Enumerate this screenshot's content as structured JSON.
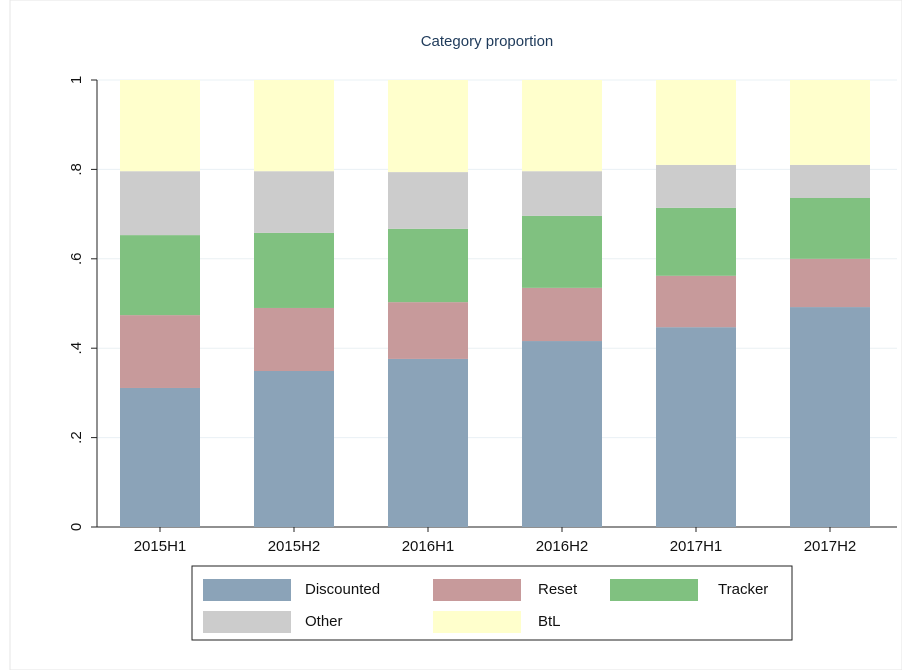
{
  "chart_data": {
    "type": "stacked_bar",
    "title": "Category proportion",
    "categories": [
      "2015H1",
      "2015H2",
      "2016H1",
      "2016H2",
      "2017H1",
      "2017H2"
    ],
    "series": [
      {
        "name": "Discounted",
        "color": "#8ba3b8",
        "values": [
          0.311,
          0.349,
          0.376,
          0.416,
          0.447,
          0.492
        ]
      },
      {
        "name": "Reset",
        "color": "#c79a9b",
        "values": [
          0.163,
          0.141,
          0.127,
          0.119,
          0.115,
          0.108
        ]
      },
      {
        "name": "Tracker",
        "color": "#80c180",
        "values": [
          0.179,
          0.168,
          0.164,
          0.161,
          0.152,
          0.136
        ]
      },
      {
        "name": "Other",
        "color": "#cccccc",
        "values": [
          0.143,
          0.138,
          0.127,
          0.1,
          0.096,
          0.074
        ]
      },
      {
        "name": "BtL",
        "color": "#ffffcc",
        "values": [
          0.204,
          0.204,
          0.206,
          0.204,
          0.19,
          0.19
        ]
      }
    ],
    "ylim": [
      0,
      1
    ],
    "yticks": [
      0,
      {
        "value": 0.2,
        "label": ".2"
      },
      {
        "value": 0.4,
        "label": ".4"
      },
      {
        "value": 0.6,
        "label": ".6"
      },
      {
        "value": 0.8,
        "label": ".8"
      },
      1
    ],
    "grid": true
  }
}
